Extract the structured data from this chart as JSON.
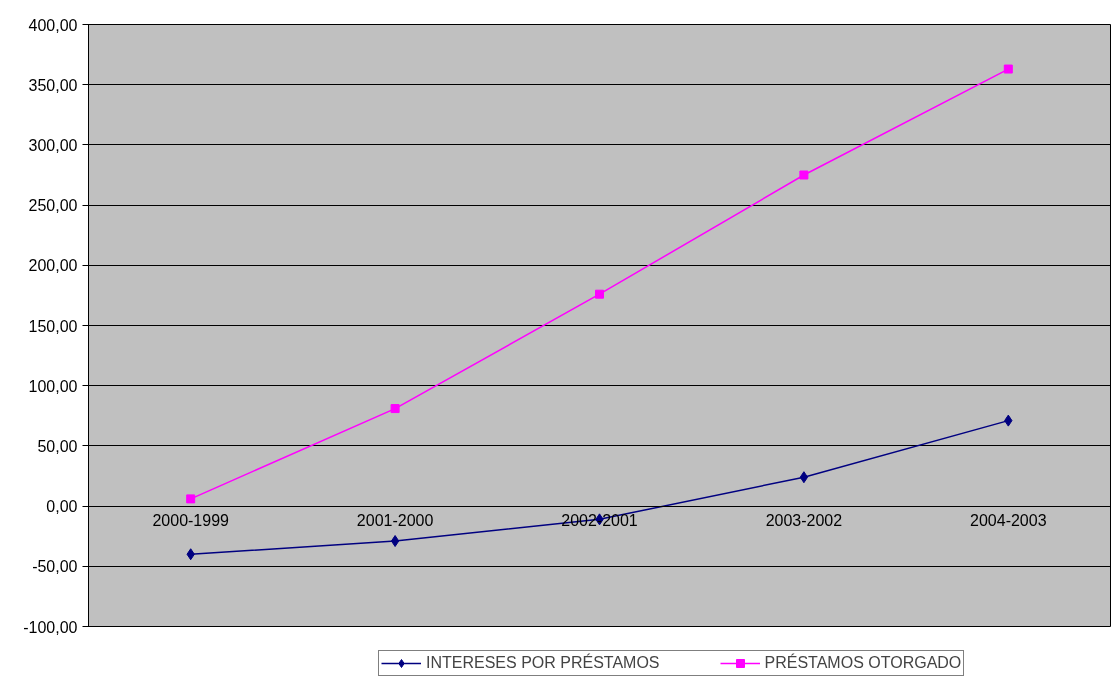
{
  "chart_data": {
    "type": "line",
    "categories": [
      "2000-1999",
      "2001-2000",
      "2002-2001",
      "2003-2002",
      "2004-2003"
    ],
    "series": [
      {
        "name": "INTERESES POR PRÉSTAMOS",
        "color": "#000080",
        "marker": "diamond",
        "values": [
          -40,
          -29,
          -11,
          24,
          71
        ]
      },
      {
        "name": "PRÉSTAMOS OTORGADO",
        "color": "#ff00ff",
        "marker": "square",
        "values": [
          6,
          81,
          176,
          275,
          363
        ]
      }
    ],
    "ylim": [
      -100,
      400
    ],
    "yticks": [
      {
        "value": -100,
        "label": "-100,00"
      },
      {
        "value": -50,
        "label": "-50,00"
      },
      {
        "value": 0,
        "label": "0,00"
      },
      {
        "value": 50,
        "label": "50,00"
      },
      {
        "value": 100,
        "label": "100,00"
      },
      {
        "value": 150,
        "label": "150,00"
      },
      {
        "value": 200,
        "label": "200,00"
      },
      {
        "value": 250,
        "label": "250,00"
      },
      {
        "value": 300,
        "label": "300,00"
      },
      {
        "value": 350,
        "label": "350,00"
      },
      {
        "value": 400,
        "label": "400,00"
      }
    ],
    "grid": "y",
    "legend": "bottom",
    "line_style": "solid"
  }
}
